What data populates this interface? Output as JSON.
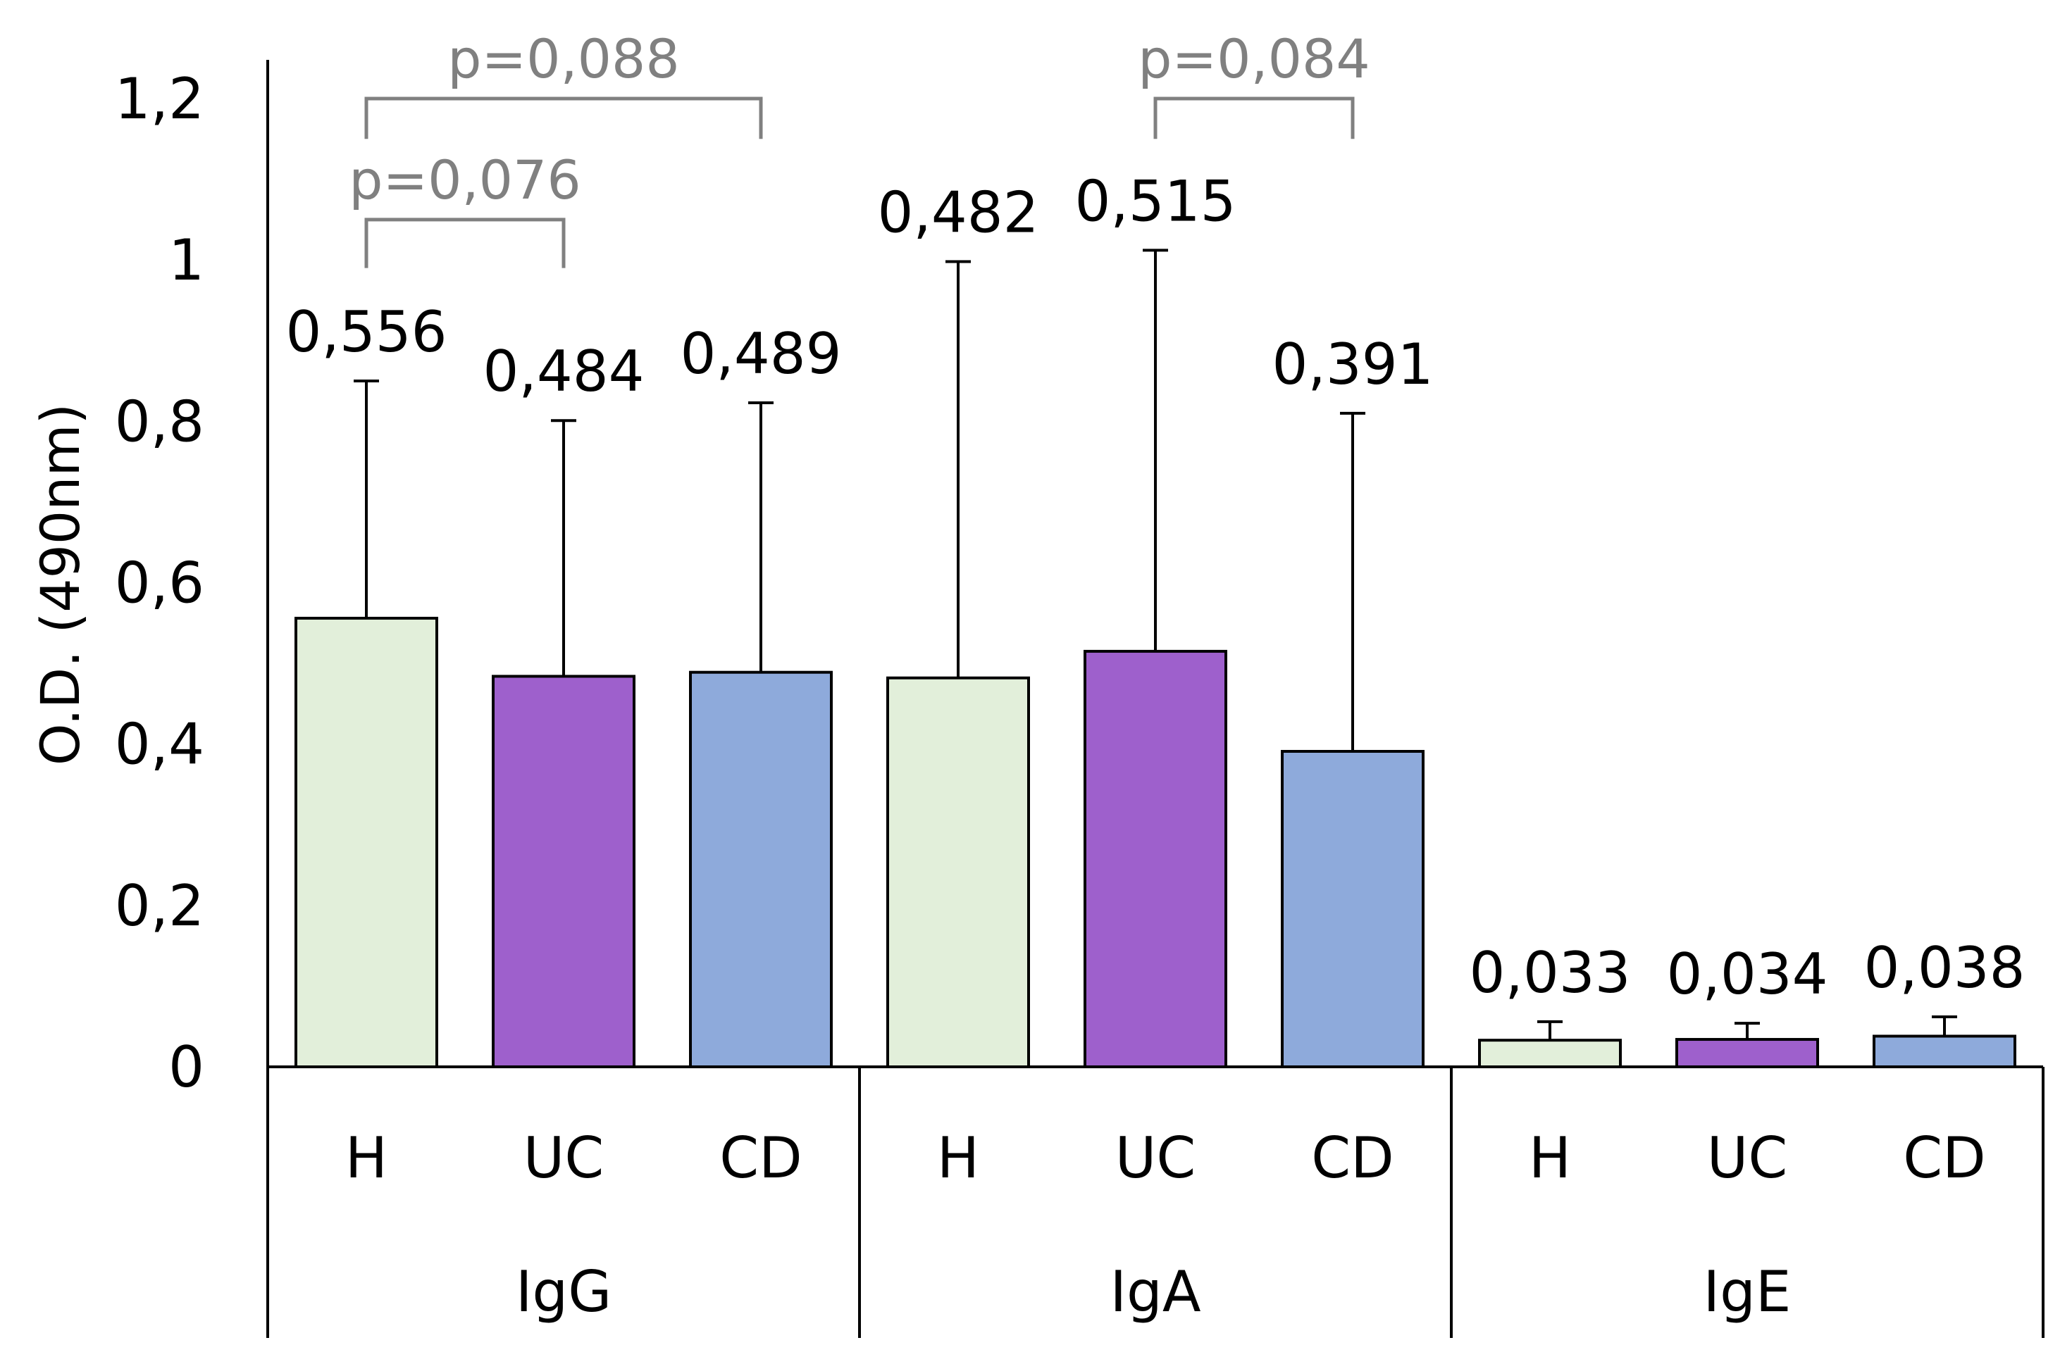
{
  "chart_data": {
    "type": "bar",
    "ylabel": "O.D. (490nm)",
    "ylim": [
      0,
      1.2
    ],
    "yticks": [
      "0",
      "0,2",
      "0,4",
      "0,6",
      "0,8",
      "1",
      "1,2"
    ],
    "ytick_values": [
      0,
      0.2,
      0.4,
      0.6,
      0.8,
      1.0,
      1.2
    ],
    "groups": [
      {
        "name": "IgG",
        "bars": [
          {
            "category": "H",
            "value": 0.556,
            "error": 0.294,
            "label": "0,556",
            "color": "#e2efda"
          },
          {
            "category": "UC",
            "value": 0.484,
            "error": 0.317,
            "label": "0,484",
            "color": "#9e60cc"
          },
          {
            "category": "CD",
            "value": 0.489,
            "error": 0.334,
            "label": "0,489",
            "color": "#8eaadb"
          }
        ]
      },
      {
        "name": "IgA",
        "bars": [
          {
            "category": "H",
            "value": 0.482,
            "error": 0.516,
            "label": "0,482",
            "color": "#e2efda"
          },
          {
            "category": "UC",
            "value": 0.515,
            "error": 0.497,
            "label": "0,515",
            "color": "#9e60cc"
          },
          {
            "category": "CD",
            "value": 0.391,
            "error": 0.419,
            "label": "0,391",
            "color": "#8eaadb"
          }
        ]
      },
      {
        "name": "IgE",
        "bars": [
          {
            "category": "H",
            "value": 0.033,
            "error": 0.023,
            "label": "0,033",
            "color": "#e2efda"
          },
          {
            "category": "UC",
            "value": 0.034,
            "error": 0.02,
            "label": "0,034",
            "color": "#9e60cc"
          },
          {
            "category": "CD",
            "value": 0.038,
            "error": 0.024,
            "label": "0,038",
            "color": "#8eaadb"
          }
        ]
      }
    ],
    "annotations": [
      {
        "label": "p=0,088",
        "from": [
          0,
          0
        ],
        "to": [
          0,
          2
        ],
        "level": 1.2,
        "tick_end": 1.15
      },
      {
        "label": "p=0,076",
        "from": [
          0,
          0
        ],
        "to": [
          0,
          1
        ],
        "level": 1.05,
        "tick_end": 0.99
      },
      {
        "label": "p=0,084",
        "from": [
          1,
          1
        ],
        "to": [
          1,
          2
        ],
        "level": 1.2,
        "tick_end": 1.15
      }
    ]
  }
}
